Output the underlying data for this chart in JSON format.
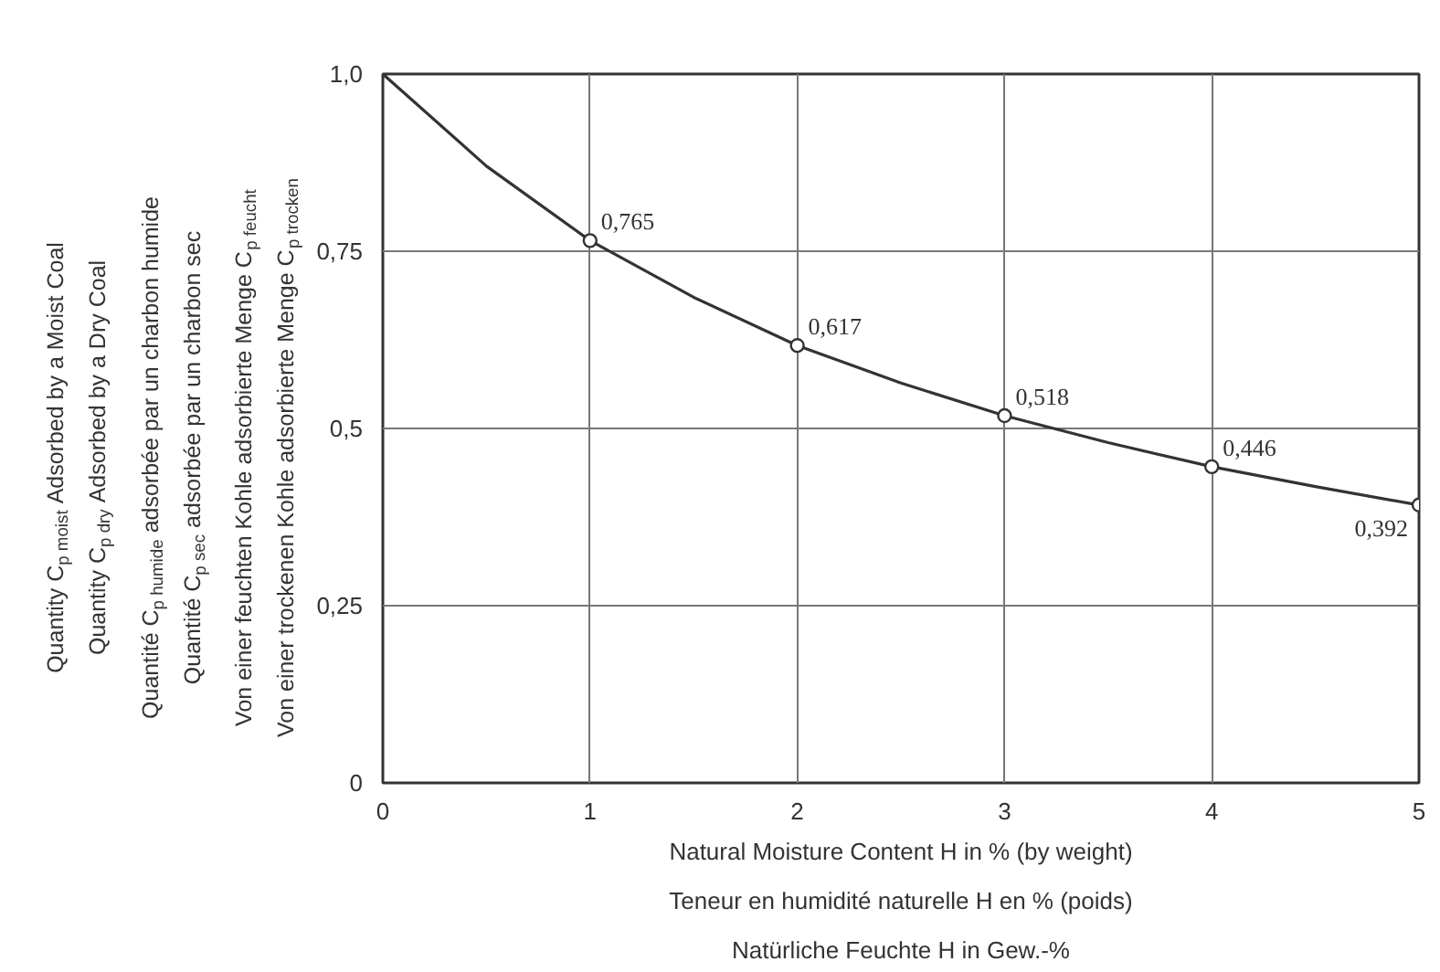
{
  "chart_data": {
    "type": "line",
    "xlabel": "Natural Moisture Content H in % (by weight)\nTeneur en humidité naturelle H en % (poids)\nNatürliche Feuchte H in Gew.-%",
    "ylabel": "Quantity C$_{p moist}$ Adsorbed by a Moist Coal\nQuantity C$_{p dry}$ Adsorbed by a Dry Coal\nQuantité C$_{p humide}$ adsorbée par un charbon humide\nQuantité C$_{p sec}$ adsorbée par un charbon sec\nVon einer feuchten Kohle adsorbierte Menge C$_{p feucht}$\nVon einer trockenen Kohle adsorbierte Menge C$_{p trocken}$",
    "xlim": [
      0,
      5
    ],
    "ylim": [
      0,
      1.0
    ],
    "xticks": [
      0,
      1,
      2,
      3,
      4,
      5
    ],
    "yticks": [
      {
        "value": 0,
        "label": "0"
      },
      {
        "value": 0.25,
        "label": "0,25"
      },
      {
        "value": 0.5,
        "label": "0,5"
      },
      {
        "value": 0.75,
        "label": "0,75"
      },
      {
        "value": 1.0,
        "label": "1,0"
      }
    ],
    "grid": true,
    "series": [
      {
        "color": "#333333",
        "marker": "none",
        "x": [
          0,
          0.5,
          1,
          1.5,
          2,
          2.5,
          3,
          3.5,
          4,
          4.5,
          5
        ],
        "values": [
          1.0,
          0.87,
          0.765,
          0.685,
          0.617,
          0.564,
          0.518,
          0.48,
          0.446,
          0.418,
          0.392
        ]
      },
      {
        "type": "scatter",
        "color": "#333333",
        "marker": "circle",
        "x": [
          1,
          2,
          3,
          4,
          5
        ],
        "values": [
          0.765,
          0.617,
          0.518,
          0.446,
          0.392
        ],
        "value_labels": [
          "0,765",
          "0,617",
          "0,518",
          "0,446",
          "0,392"
        ]
      }
    ]
  }
}
